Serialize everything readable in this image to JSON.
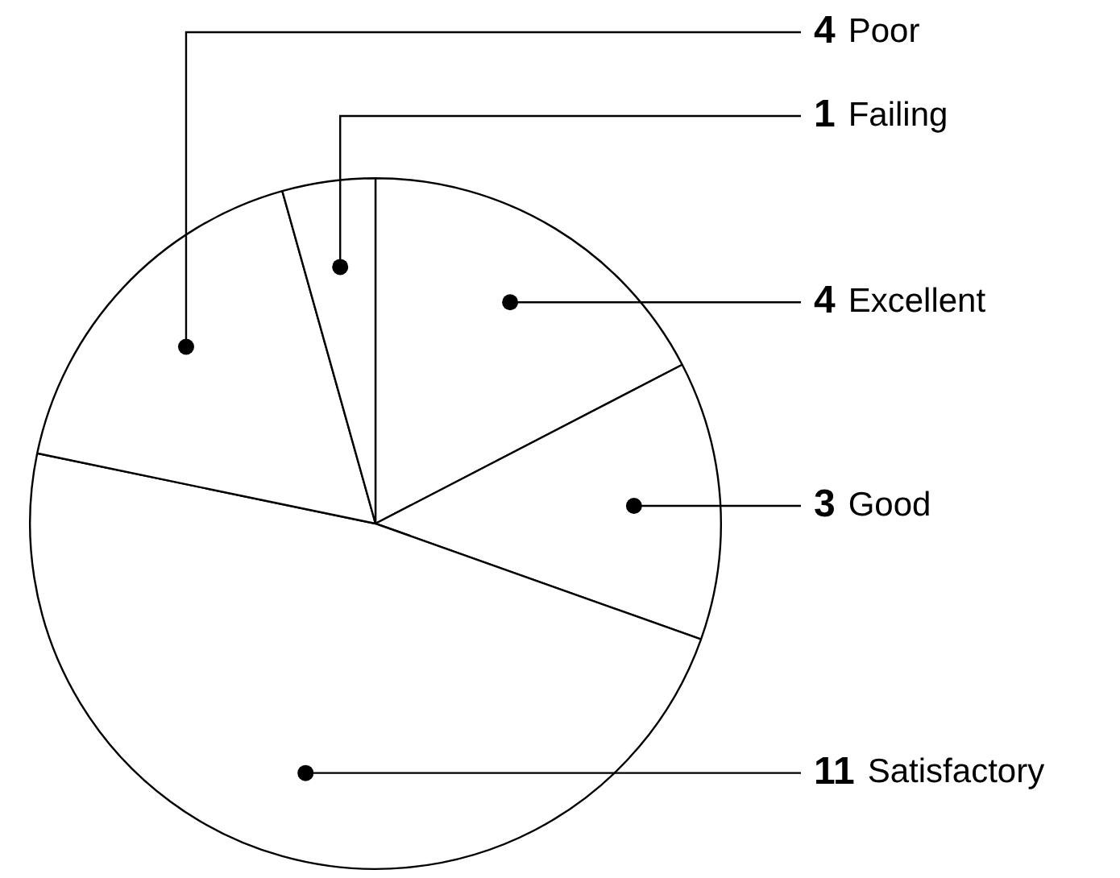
{
  "chart_data": {
    "type": "pie",
    "categories": [
      "Excellent",
      "Good",
      "Satisfactory",
      "Poor",
      "Failing"
    ],
    "values": [
      4,
      3,
      11,
      4,
      1
    ],
    "colors": [
      "#ffffff",
      "#ffffff",
      "#ffffff",
      "#ffffff",
      "#ffffff"
    ],
    "data_labels": true,
    "legend": false
  }
}
